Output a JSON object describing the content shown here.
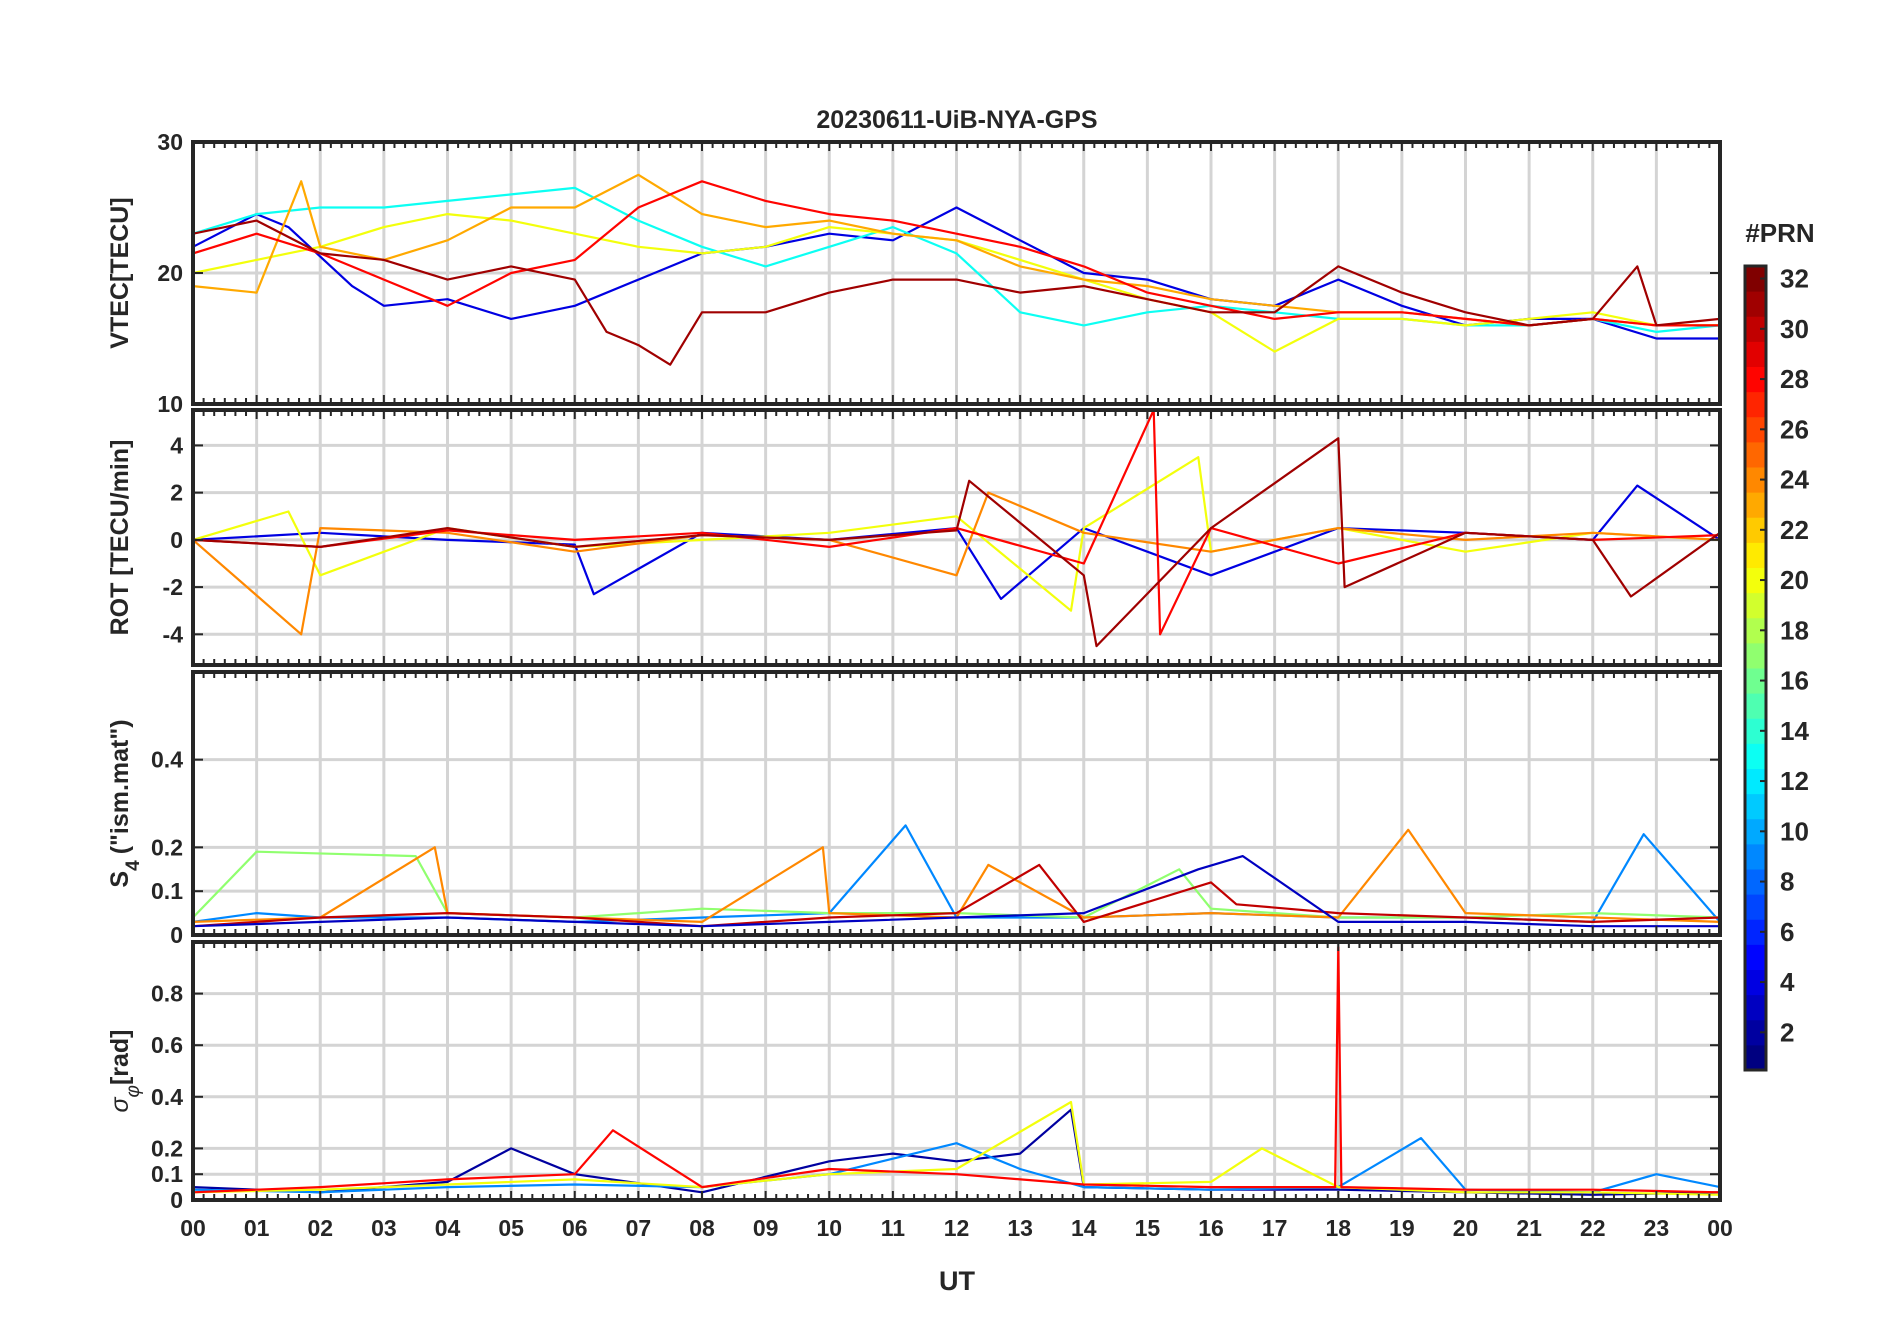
{
  "chart_data": {
    "type": "line",
    "title": "20230611-UiB-NYA-GPS",
    "xlabel": "UT",
    "x_range_hours": [
      0,
      24
    ],
    "x_tick_labels": [
      "00",
      "01",
      "02",
      "03",
      "04",
      "05",
      "06",
      "07",
      "08",
      "09",
      "10",
      "11",
      "12",
      "13",
      "14",
      "15",
      "16",
      "17",
      "18",
      "19",
      "20",
      "21",
      "22",
      "23",
      "00"
    ],
    "colorbar": {
      "title": "#PRN",
      "range": [
        1,
        32
      ],
      "tick_labels": [
        "2",
        "4",
        "6",
        "8",
        "10",
        "12",
        "14",
        "16",
        "18",
        "20",
        "22",
        "24",
        "26",
        "28",
        "30",
        "32"
      ],
      "colormap": "jet"
    },
    "panels": [
      {
        "ylabel": "VTEC[TECU]",
        "ylim": [
          10,
          30
        ],
        "y_tick_labels": [
          "10",
          "20",
          "30"
        ],
        "series": [
          {
            "name": "PRN 4",
            "prn": 4,
            "x": [
              0.0,
              1.0,
              1.5,
              2.5,
              3.0,
              4.0,
              5.0,
              6.0,
              7.0,
              8.0,
              9.0,
              10.0,
              11.0,
              12.0,
              13.0,
              14.0,
              15.0,
              16.0,
              17.0,
              18.0,
              19.0,
              20.0,
              21.0,
              22.0,
              23.0,
              24.0
            ],
            "y": [
              22,
              24.5,
              23.5,
              19,
              17.5,
              18,
              16.5,
              17.5,
              19.5,
              21.5,
              22,
              23,
              22.5,
              25,
              22.5,
              20,
              19.5,
              18,
              17.5,
              19.5,
              17.5,
              16,
              16.5,
              16.5,
              15,
              15
            ]
          },
          {
            "name": "PRN 13",
            "prn": 13,
            "x": [
              0.0,
              1.0,
              2.0,
              3.0,
              4.0,
              5.0,
              6.0,
              7.0,
              8.0,
              9.0,
              10.0,
              11.0,
              12.0,
              13.0,
              14.0,
              15.0,
              16.0,
              17.0,
              18.0,
              19.0,
              20.0,
              21.0,
              22.0,
              23.0,
              24.0
            ],
            "y": [
              23,
              24.5,
              25,
              25,
              25.5,
              26,
              26.5,
              24,
              22,
              20.5,
              22,
              23.5,
              21.5,
              17,
              16,
              17,
              17.5,
              17,
              16.5,
              16.5,
              16,
              16,
              16.5,
              15.5,
              16
            ]
          },
          {
            "name": "PRN 20",
            "prn": 20,
            "x": [
              0.0,
              1.0,
              2.0,
              3.0,
              4.0,
              5.0,
              6.0,
              7.0,
              8.0,
              9.0,
              10.0,
              11.0,
              12.0,
              13.0,
              14.0,
              15.0,
              16.0,
              17.0,
              18.0,
              19.0,
              20.0,
              21.0,
              22.0,
              23.0,
              24.0
            ],
            "y": [
              20,
              21,
              22,
              23.5,
              24.5,
              24,
              23,
              22,
              21.5,
              22,
              23.5,
              23,
              22.5,
              21,
              19.5,
              18,
              17,
              14,
              16.5,
              16.5,
              16,
              16.5,
              17,
              16,
              16
            ]
          },
          {
            "name": "PRN 23",
            "prn": 23,
            "x": [
              0.0,
              1.0,
              1.7,
              2.0,
              3.0,
              4.0,
              5.0,
              6.0,
              7.0,
              8.0,
              9.0,
              10.0,
              11.0,
              12.0,
              13.0,
              14.0,
              15.0,
              16.0,
              17.0,
              18.0,
              19.0,
              20.0,
              21.0,
              22.0,
              23.0,
              24.0
            ],
            "y": [
              19,
              18.5,
              27,
              22,
              21,
              22.5,
              25,
              25,
              27.5,
              24.5,
              23.5,
              24,
              23,
              22.5,
              20.5,
              19.5,
              19,
              18,
              17.5,
              17,
              17,
              16.5,
              16,
              16.5,
              16,
              16
            ]
          },
          {
            "name": "PRN 28",
            "prn": 28,
            "x": [
              0.0,
              1.0,
              2.0,
              3.0,
              4.0,
              5.0,
              6.0,
              7.0,
              8.0,
              9.0,
              10.0,
              11.0,
              12.0,
              13.0,
              14.0,
              15.0,
              16.0,
              17.0,
              18.0,
              19.0,
              20.0,
              21.0,
              22.0,
              23.0,
              24.0
            ],
            "y": [
              21.5,
              23,
              21.5,
              19.5,
              17.5,
              20,
              21,
              25,
              27,
              25.5,
              24.5,
              24,
              23,
              22,
              20.5,
              18.5,
              17.5,
              16.5,
              17,
              17,
              16.5,
              16,
              16.5,
              16,
              16
            ]
          },
          {
            "name": "PRN 31",
            "prn": 31,
            "x": [
              0.0,
              1.0,
              2.0,
              3.0,
              4.0,
              5.0,
              6.0,
              6.5,
              7.0,
              7.5,
              8.0,
              9.0,
              10.0,
              11.0,
              12.0,
              13.0,
              14.0,
              15.0,
              16.0,
              17.0,
              18.0,
              19.0,
              20.0,
              21.0,
              22.0,
              22.7,
              23.0,
              24.0
            ],
            "y": [
              23,
              24,
              21.5,
              21,
              19.5,
              20.5,
              19.5,
              15.5,
              14.5,
              13,
              17,
              17,
              18.5,
              19.5,
              19.5,
              18.5,
              19,
              18,
              17,
              17,
              20.5,
              18.5,
              17,
              16,
              16.5,
              20.5,
              16,
              16.5
            ]
          }
        ]
      },
      {
        "ylabel": "ROT [TECU/min]",
        "ylim": [
          -5.3,
          5.5
        ],
        "y_tick_labels": [
          "-4",
          "-2",
          "0",
          "2",
          "4"
        ],
        "series": [
          {
            "name": "PRN 4",
            "prn": 4,
            "x": [
              0,
              2,
              4,
              6,
              6.3,
              8,
              10,
              12,
              12.7,
              14,
              16,
              18,
              20,
              22,
              22.7,
              24
            ],
            "y": [
              0,
              0.3,
              0,
              -0.2,
              -2.3,
              0.3,
              0,
              0.5,
              -2.5,
              0.5,
              -1.5,
              0.5,
              0.3,
              0,
              2.3,
              0
            ]
          },
          {
            "name": "PRN 20",
            "prn": 20,
            "x": [
              0,
              1.5,
              2,
              4,
              6,
              8,
              10,
              12,
              13.8,
              14,
              15.8,
              16,
              18,
              20,
              22,
              24
            ],
            "y": [
              0,
              1.2,
              -1.5,
              0.5,
              -0.3,
              0,
              0.3,
              1,
              -3,
              0.5,
              3.5,
              -0.5,
              0.5,
              -0.5,
              0.3,
              0
            ]
          },
          {
            "name": "PRN 24",
            "prn": 24,
            "x": [
              0,
              1.7,
              2,
              4,
              6,
              8,
              10,
              12,
              12.5,
              14,
              16,
              18,
              20,
              22,
              24
            ],
            "y": [
              0,
              -4,
              0.5,
              0.3,
              -0.5,
              0.2,
              0,
              -1.5,
              2,
              0.3,
              -0.5,
              0.5,
              0,
              0.3,
              0
            ]
          },
          {
            "name": "PRN 28",
            "prn": 28,
            "x": [
              0,
              2,
              4,
              6,
              8,
              10,
              12,
              14,
              15.1,
              15.2,
              16,
              18,
              20,
              22,
              24
            ],
            "y": [
              0,
              -0.3,
              0.4,
              0,
              0.3,
              -0.3,
              0.5,
              -1,
              5.5,
              -4,
              0.5,
              -1,
              0.3,
              0,
              0.2
            ]
          },
          {
            "name": "PRN 31",
            "prn": 31,
            "x": [
              0,
              2,
              4,
              6,
              8,
              10,
              12,
              12.2,
              14,
              14.2,
              16,
              18,
              18.1,
              20,
              22,
              22.6,
              24
            ],
            "y": [
              0,
              -0.3,
              0.5,
              -0.3,
              0.2,
              0,
              0.4,
              2.5,
              -1.5,
              -4.5,
              0.5,
              4.3,
              -2,
              0.3,
              0,
              -2.4,
              0.3
            ]
          }
        ]
      },
      {
        "ylabel": "S4 (\"ism.mat\")",
        "ylabel_parts": {
          "symbol": "S",
          "subscript": "4",
          "rest": "(\"ism.mat\")"
        },
        "ylim": [
          0,
          0.6
        ],
        "y_tick_labels": [
          "0",
          "0.1",
          "0.2",
          "0.4"
        ],
        "series": [
          {
            "name": "PRN 9",
            "prn": 9,
            "x": [
              0,
              1,
              2,
              4,
              6,
              8,
              10,
              11.2,
              12,
              14,
              16,
              18,
              20,
              22,
              22.8,
              24
            ],
            "y": [
              0.03,
              0.05,
              0.04,
              0.04,
              0.03,
              0.04,
              0.05,
              0.25,
              0.04,
              0.04,
              0.05,
              0.04,
              0.04,
              0.03,
              0.23,
              0.03
            ]
          },
          {
            "name": "PRN 17",
            "prn": 17,
            "x": [
              0,
              1,
              3.5,
              4,
              6,
              8,
              10,
              12,
              14,
              15.5,
              16,
              18,
              20,
              22,
              24
            ],
            "y": [
              0.04,
              0.19,
              0.18,
              0.05,
              0.04,
              0.06,
              0.05,
              0.05,
              0.04,
              0.15,
              0.06,
              0.04,
              0.04,
              0.05,
              0.04
            ]
          },
          {
            "name": "PRN 24",
            "prn": 24,
            "x": [
              0,
              2,
              3.8,
              4,
              6,
              8,
              9.9,
              10,
              12,
              12.5,
              14,
              16,
              18,
              19.1,
              20,
              22,
              24
            ],
            "y": [
              0.03,
              0.04,
              0.2,
              0.05,
              0.04,
              0.03,
              0.2,
              0.05,
              0.04,
              0.16,
              0.04,
              0.05,
              0.04,
              0.24,
              0.05,
              0.04,
              0.03
            ]
          },
          {
            "name": "PRN 30",
            "prn": 30,
            "x": [
              0,
              2,
              4,
              6,
              8,
              10,
              12,
              13.3,
              14,
              16,
              16.4,
              18,
              20,
              22,
              24
            ],
            "y": [
              0.02,
              0.04,
              0.05,
              0.04,
              0.02,
              0.04,
              0.05,
              0.16,
              0.03,
              0.12,
              0.07,
              0.05,
              0.04,
              0.03,
              0.04
            ]
          },
          {
            "name": "PRN 3",
            "prn": 3,
            "x": [
              0,
              2,
              4,
              6,
              8,
              10,
              12,
              14,
              15.8,
              16.5,
              18,
              20,
              22,
              24
            ],
            "y": [
              0.02,
              0.03,
              0.04,
              0.03,
              0.02,
              0.03,
              0.04,
              0.05,
              0.15,
              0.18,
              0.03,
              0.03,
              0.02,
              0.02
            ]
          }
        ]
      },
      {
        "ylabel": "σφ[rad]",
        "ylabel_parts": {
          "symbol": "σ",
          "subscript": "φ",
          "rest": "[rad]"
        },
        "ylim": [
          0,
          1.0
        ],
        "y_tick_labels": [
          "0",
          "0.1",
          "0.2",
          "0.4",
          "0.6",
          "0.8"
        ],
        "series": [
          {
            "name": "PRN 2",
            "prn": 2,
            "x": [
              0,
              2,
              4,
              5,
              6,
              8,
              10,
              11,
              12,
              13,
              13.8,
              14,
              16,
              18,
              20,
              22,
              24
            ],
            "y": [
              0.05,
              0.03,
              0.07,
              0.2,
              0.1,
              0.03,
              0.15,
              0.18,
              0.15,
              0.18,
              0.35,
              0.05,
              0.04,
              0.04,
              0.03,
              0.02,
              0.03
            ]
          },
          {
            "name": "PRN 9",
            "prn": 9,
            "x": [
              0,
              2,
              4,
              6,
              8,
              10,
              12,
              13,
              14,
              16,
              18,
              19.3,
              20,
              22,
              23,
              24
            ],
            "y": [
              0.04,
              0.03,
              0.05,
              0.06,
              0.05,
              0.1,
              0.22,
              0.12,
              0.05,
              0.04,
              0.05,
              0.24,
              0.04,
              0.03,
              0.1,
              0.05
            ]
          },
          {
            "name": "PRN 20",
            "prn": 20,
            "x": [
              0,
              2,
              4,
              6,
              8,
              10,
              12,
              13.8,
              14,
              16,
              16.8,
              18,
              20,
              22,
              24
            ],
            "y": [
              0.03,
              0.04,
              0.06,
              0.08,
              0.05,
              0.1,
              0.12,
              0.38,
              0.06,
              0.07,
              0.2,
              0.05,
              0.03,
              0.03,
              0.02
            ]
          },
          {
            "name": "PRN 28",
            "prn": 28,
            "x": [
              0,
              2,
              4,
              6,
              6.6,
              8,
              10,
              12,
              14,
              16,
              17.95,
              18.0,
              18.05,
              20,
              22,
              24
            ],
            "y": [
              0.03,
              0.05,
              0.08,
              0.1,
              0.27,
              0.05,
              0.12,
              0.1,
              0.06,
              0.05,
              0.05,
              0.98,
              0.05,
              0.04,
              0.04,
              0.03
            ]
          }
        ]
      }
    ]
  }
}
